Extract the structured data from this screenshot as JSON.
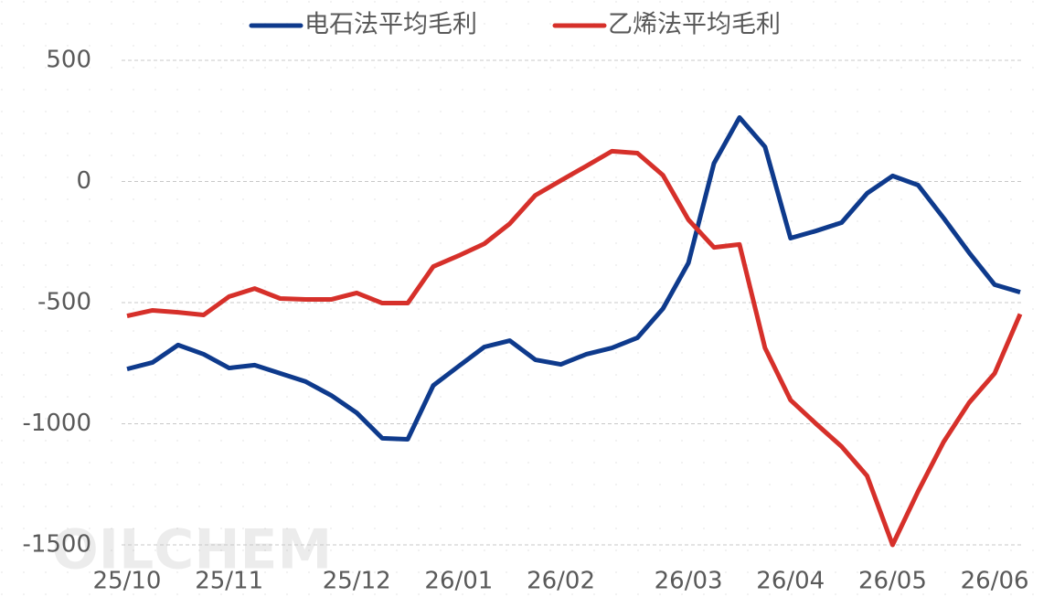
{
  "chart_data": {
    "type": "line",
    "watermark": "OILCHEM",
    "categories": [
      "25/10",
      null,
      null,
      null,
      "25/11",
      null,
      null,
      null,
      null,
      "25/12",
      null,
      null,
      null,
      "26/01",
      null,
      null,
      null,
      "26/02",
      null,
      null,
      null,
      null,
      "26/03",
      null,
      null,
      null,
      "26/04",
      null,
      null,
      null,
      "26/05",
      null,
      null,
      null,
      "26/06",
      null
    ],
    "series": [
      {
        "name": "电石法平均毛利",
        "color": "#0e3a8c",
        "values": [
          -774,
          -747,
          -675,
          -713,
          -770,
          -758,
          -792,
          -826,
          -883,
          -955,
          -1060,
          -1064,
          -842,
          -762,
          -683,
          -657,
          -736,
          -755,
          -713,
          -687,
          -645,
          -525,
          -336,
          75,
          264,
          143,
          -234,
          -204,
          -170,
          -49,
          23,
          -15,
          -151,
          -294,
          -426,
          -457
        ]
      },
      {
        "name": "乙烯法平均毛利",
        "color": "#d6302a",
        "values": [
          -555,
          -532,
          -540,
          -551,
          -475,
          -442,
          -483,
          -487,
          -487,
          -460,
          -502,
          -502,
          -351,
          -306,
          -257,
          -174,
          -57,
          4,
          64,
          125,
          117,
          26,
          -158,
          -272,
          -260,
          -687,
          -902,
          -1000,
          -1094,
          -1215,
          -1500,
          -1279,
          -1075,
          -913,
          -792,
          -547
        ]
      }
    ],
    "ylim": [
      -1500,
      500
    ],
    "yticks": [
      -1500,
      -1000,
      -500,
      0,
      500
    ],
    "grid": true,
    "legend": "top"
  }
}
